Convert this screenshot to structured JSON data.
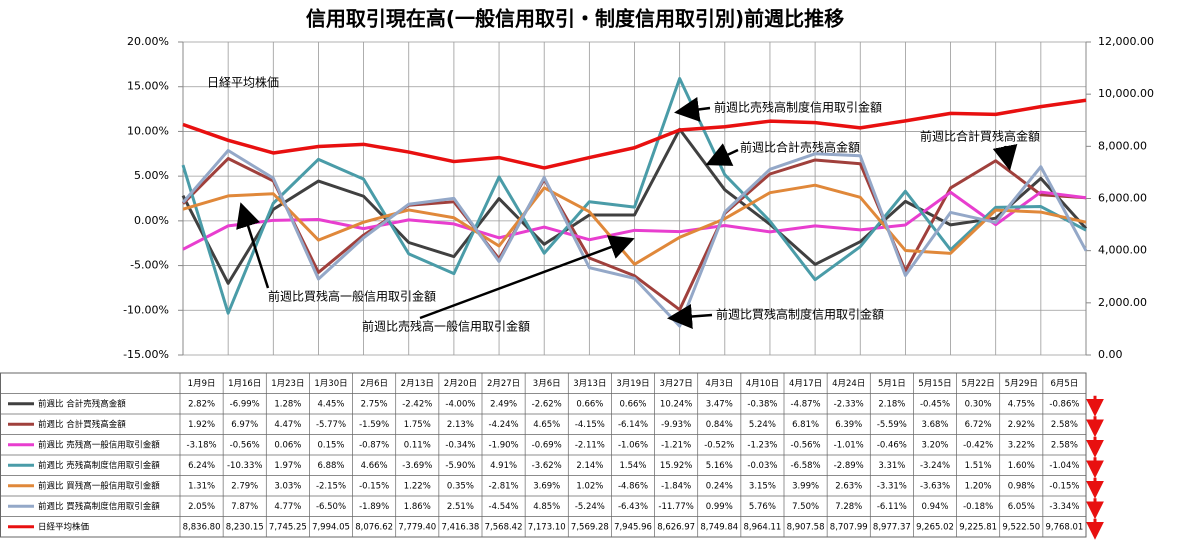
{
  "chart_data": {
    "type": "line",
    "title": "信用取引現在高(一般信用取引・制度信用取引別)前週比推移",
    "categories": [
      "1月9日",
      "1月16日",
      "1月23日",
      "1月30日",
      "2月6日",
      "2月13日",
      "2月20日",
      "2月27日",
      "3月6日",
      "3月13日",
      "3月19日",
      "3月27日",
      "4月3日",
      "4月10日",
      "4月17日",
      "4月24日",
      "5月1日",
      "5月15日",
      "5月22日",
      "5月29日",
      "6月5日"
    ],
    "ylim": [
      -15,
      20
    ],
    "yticks": [
      {
        "value": -15,
        "label": "-15.00%"
      },
      {
        "value": -10,
        "label": "-10.00%"
      },
      {
        "value": -5,
        "label": "-5.00%"
      },
      {
        "value": 0,
        "label": "0.00%"
      },
      {
        "value": 5,
        "label": "5.00%"
      },
      {
        "value": 10,
        "label": "10.00%"
      },
      {
        "value": 15,
        "label": "15.00%"
      },
      {
        "value": 20,
        "label": "20.00%"
      }
    ],
    "y2lim": [
      0,
      12000
    ],
    "y2ticks": [
      {
        "value": 0,
        "label": "0.00"
      },
      {
        "value": 2000,
        "label": "2,000.00"
      },
      {
        "value": 4000,
        "label": "4,000.00"
      },
      {
        "value": 6000,
        "label": "6,000.00"
      },
      {
        "value": 8000,
        "label": "8,000.00"
      },
      {
        "value": 10000,
        "label": "10,000.00"
      },
      {
        "value": 12000,
        "label": "12,000.00"
      }
    ],
    "grid": true,
    "series": [
      {
        "name": "前週比 合計売残高金額",
        "color": "#404040",
        "values": [
          2.82,
          -6.99,
          1.28,
          4.45,
          2.75,
          -2.42,
          -4.0,
          2.49,
          -2.62,
          0.66,
          0.66,
          10.24,
          3.47,
          -0.38,
          -4.87,
          -2.33,
          2.18,
          -0.45,
          0.3,
          4.75,
          -0.86
        ],
        "value_labels": [
          "2.82%",
          "-6.99%",
          "1.28%",
          "4.45%",
          "2.75%",
          "-2.42%",
          "-4.00%",
          "2.49%",
          "-2.62%",
          "0.66%",
          "0.66%",
          "10.24%",
          "3.47%",
          "-0.38%",
          "-4.87%",
          "-2.33%",
          "2.18%",
          "-0.45%",
          "0.30%",
          "4.75%",
          "-0.86%"
        ]
      },
      {
        "name": "前週比 合計買残高金額",
        "color": "#a0403c",
        "values": [
          1.92,
          6.97,
          4.47,
          -5.77,
          -1.59,
          1.75,
          2.13,
          -4.24,
          4.65,
          -4.15,
          -6.14,
          -9.93,
          0.84,
          5.24,
          6.81,
          6.39,
          -5.59,
          3.68,
          6.72,
          2.92,
          2.58
        ],
        "value_labels": [
          "1.92%",
          "6.97%",
          "4.47%",
          "-5.77%",
          "-1.59%",
          "1.75%",
          "2.13%",
          "-4.24%",
          "4.65%",
          "-4.15%",
          "-6.14%",
          "-9.93%",
          "0.84%",
          "5.24%",
          "6.81%",
          "6.39%",
          "-5.59%",
          "3.68%",
          "6.72%",
          "2.92%",
          "2.58%"
        ]
      },
      {
        "name": "前週比 売残高一般信用取引金額",
        "color": "#e83ecf",
        "values": [
          -3.18,
          -0.56,
          0.06,
          0.15,
          -0.87,
          0.11,
          -0.34,
          -1.9,
          -0.69,
          -2.11,
          -1.06,
          -1.21,
          -0.52,
          -1.23,
          -0.56,
          -1.01,
          -0.46,
          3.2,
          -0.42,
          3.22,
          2.58
        ],
        "value_labels": [
          "-3.18%",
          "-0.56%",
          "0.06%",
          "0.15%",
          "-0.87%",
          "0.11%",
          "-0.34%",
          "-1.90%",
          "-0.69%",
          "-2.11%",
          "-1.06%",
          "-1.21%",
          "-0.52%",
          "-1.23%",
          "-0.56%",
          "-1.01%",
          "-0.46%",
          "3.20%",
          "-0.42%",
          "3.22%",
          "2.58%"
        ]
      },
      {
        "name": "前週比 売残高制度信用取引金額",
        "color": "#4a9ca8",
        "values": [
          6.24,
          -10.33,
          1.97,
          6.88,
          4.66,
          -3.69,
          -5.9,
          4.91,
          -3.62,
          2.14,
          1.54,
          15.92,
          5.16,
          -0.03,
          -6.58,
          -2.89,
          3.31,
          -3.24,
          1.51,
          1.6,
          -1.04
        ],
        "value_labels": [
          "6.24%",
          "-10.33%",
          "1.97%",
          "6.88%",
          "4.66%",
          "-3.69%",
          "-5.90%",
          "4.91%",
          "-3.62%",
          "2.14%",
          "1.54%",
          "15.92%",
          "5.16%",
          "-0.03%",
          "-6.58%",
          "-2.89%",
          "3.31%",
          "-3.24%",
          "1.51%",
          "1.60%",
          "-1.04%"
        ]
      },
      {
        "name": "前週比 買残高一般信用取引金額",
        "color": "#e0883a",
        "values": [
          1.31,
          2.79,
          3.03,
          -2.15,
          -0.15,
          1.22,
          0.35,
          -2.81,
          3.69,
          1.02,
          -4.86,
          -1.84,
          0.24,
          3.15,
          3.99,
          2.63,
          -3.31,
          -3.63,
          1.2,
          0.98,
          -0.15
        ],
        "value_labels": [
          "1.31%",
          "2.79%",
          "3.03%",
          "-2.15%",
          "-0.15%",
          "1.22%",
          "0.35%",
          "-2.81%",
          "3.69%",
          "1.02%",
          "-4.86%",
          "-1.84%",
          "0.24%",
          "3.15%",
          "3.99%",
          "2.63%",
          "-3.31%",
          "-3.63%",
          "1.20%",
          "0.98%",
          "-0.15%"
        ]
      },
      {
        "name": "前週比 買残高制度信用取引金額",
        "color": "#94a8c8",
        "values": [
          2.05,
          7.87,
          4.77,
          -6.5,
          -1.89,
          1.86,
          2.51,
          -4.54,
          4.85,
          -5.24,
          -6.43,
          -11.77,
          0.99,
          5.76,
          7.5,
          7.28,
          -6.11,
          0.94,
          -0.18,
          6.05,
          -3.34
        ],
        "value_labels": [
          "2.05%",
          "7.87%",
          "4.77%",
          "-6.50%",
          "-1.89%",
          "1.86%",
          "2.51%",
          "-4.54%",
          "4.85%",
          "-5.24%",
          "-6.43%",
          "-11.77%",
          "0.99%",
          "5.76%",
          "7.50%",
          "7.28%",
          "-6.11%",
          "0.94%",
          "-0.18%",
          "6.05%",
          "-3.34%"
        ]
      },
      {
        "name": "日経平均株価",
        "color": "#e81010",
        "axis": "y2",
        "values": [
          8836.8,
          8230.15,
          7745.25,
          7994.05,
          8076.62,
          7779.4,
          7416.38,
          7568.42,
          7173.1,
          7569.28,
          7945.96,
          8626.97,
          8749.84,
          8964.11,
          8907.58,
          8707.99,
          8977.37,
          9265.02,
          9225.81,
          9522.5,
          9768.01
        ],
        "value_labels": [
          "8,836.80",
          "8,230.15",
          "7,745.25",
          "7,994.05",
          "8,076.62",
          "7,779.40",
          "7,416.38",
          "7,568.42",
          "7,173.10",
          "7,569.28",
          "7,945.96",
          "8,626.97",
          "8,749.84",
          "8,964.11",
          "8,907.58",
          "8,707.99",
          "8,977.37",
          "9,265.02",
          "9,225.81",
          "9,522.50",
          "9,768.01"
        ]
      }
    ],
    "annotations": [
      "日経平均株価",
      "前週比売残高制度信用取引金額",
      "前週比合計売残高金額",
      "前週比合計買残高金額",
      "前週比買残高一般信用取引金額",
      "前週比売残高一般信用取引金額",
      "前週比買残高制度信用取引金額"
    ]
  }
}
